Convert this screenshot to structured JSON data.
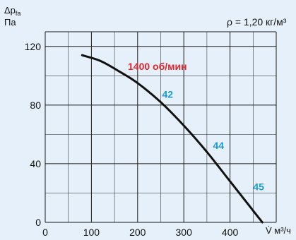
{
  "chart_data": {
    "type": "line",
    "title": "",
    "ylabel_main": "Δp",
    "ylabel_sub": "fa",
    "ylabel_unit": "Па",
    "xlabel": "V̇ м³/ч",
    "density_label": "ρ = 1,20 кг/м³",
    "xlim": [
      0,
      500
    ],
    "ylim": [
      0,
      130
    ],
    "x_ticks": [
      0,
      100,
      200,
      300,
      400
    ],
    "y_ticks": [
      0,
      40,
      80,
      120
    ],
    "grid": true,
    "series": [
      {
        "name": "1400 об/мин",
        "x": [
          80,
          120,
          160,
          200,
          250,
          300,
          350,
          400,
          440,
          460,
          470
        ],
        "y": [
          114,
          110,
          103,
          95,
          82,
          66,
          48,
          28,
          12,
          4,
          0
        ]
      }
    ],
    "annotations": [
      {
        "text": "42",
        "x": 265,
        "y": 85
      },
      {
        "text": "44",
        "x": 375,
        "y": 50
      },
      {
        "text": "45",
        "x": 462,
        "y": 22
      }
    ],
    "colors": {
      "background": "#e6f0fa",
      "grid": "#1a1a1a",
      "curve": "#111111",
      "speed_label": "#e0262b",
      "noise_label": "#1b9ad6"
    }
  }
}
